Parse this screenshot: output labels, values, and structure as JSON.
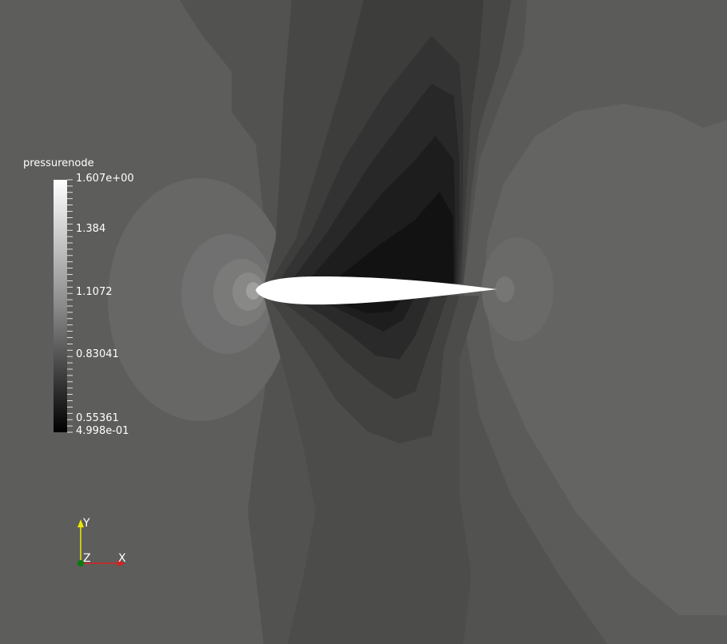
{
  "scalar_bar": {
    "title": "pressurenode",
    "labels": [
      "1.607e+00",
      "1.384",
      "1.1072",
      "0.83041",
      "0.55361",
      "4.998e-01"
    ]
  },
  "orientation_axes": {
    "y_label": "Y",
    "z_label": "Z",
    "x_label": "X"
  }
}
